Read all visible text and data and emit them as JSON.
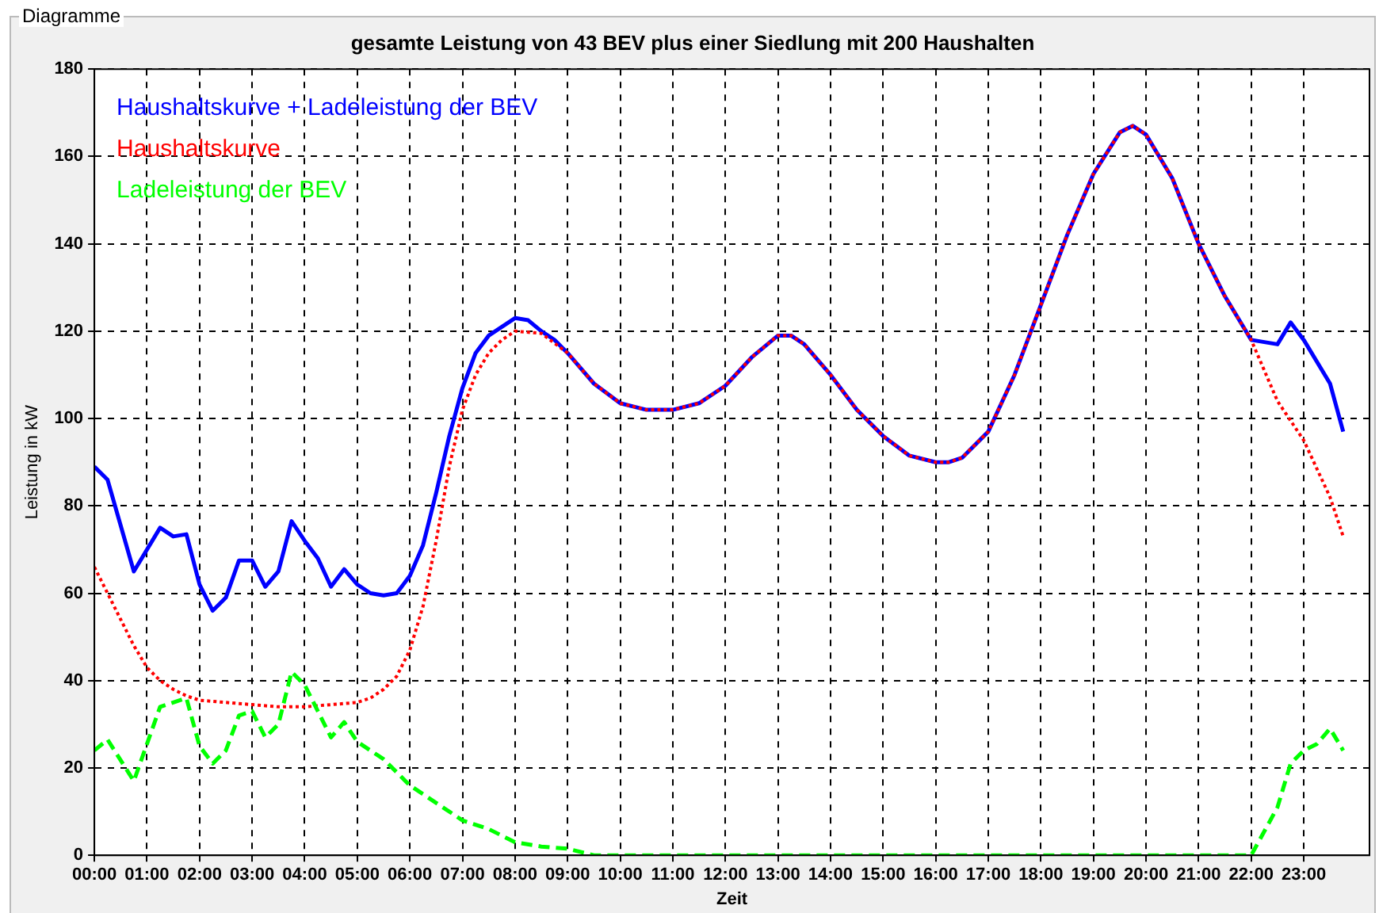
{
  "chart_data": {
    "type": "line",
    "title": "gesamte Leistung von 43 BEV plus einer Siedlung mit 200 Haushalten",
    "xlabel": "Zeit",
    "ylabel": "Leistung in kW",
    "annotations": [
      "Diagramme"
    ],
    "xlim": [
      0,
      24.25
    ],
    "ylim": [
      0,
      180
    ],
    "yticks": [
      0,
      20,
      40,
      60,
      80,
      100,
      120,
      140,
      160,
      180
    ],
    "xticks": [
      {
        "value": 0,
        "label": "00:00"
      },
      {
        "value": 1,
        "label": "01:00"
      },
      {
        "value": 2,
        "label": "02:00"
      },
      {
        "value": 3,
        "label": "03:00"
      },
      {
        "value": 4,
        "label": "04:00"
      },
      {
        "value": 5,
        "label": "05:00"
      },
      {
        "value": 6,
        "label": "06:00"
      },
      {
        "value": 7,
        "label": "07:00"
      },
      {
        "value": 8,
        "label": "08:00"
      },
      {
        "value": 9,
        "label": "09:00"
      },
      {
        "value": 10,
        "label": "10:00"
      },
      {
        "value": 11,
        "label": "11:00"
      },
      {
        "value": 12,
        "label": "12:00"
      },
      {
        "value": 13,
        "label": "13:00"
      },
      {
        "value": 14,
        "label": "14:00"
      },
      {
        "value": 15,
        "label": "15:00"
      },
      {
        "value": 16,
        "label": "16:00"
      },
      {
        "value": 17,
        "label": "17:00"
      },
      {
        "value": 18,
        "label": "18:00"
      },
      {
        "value": 19,
        "label": "19:00"
      },
      {
        "value": 20,
        "label": "20:00"
      },
      {
        "value": 21,
        "label": "21:00"
      },
      {
        "value": 22,
        "label": "22:00"
      },
      {
        "value": 23,
        "label": "23:00"
      }
    ],
    "grid": true,
    "legend": "top left",
    "marker": "none",
    "series": [
      {
        "name": "Haushaltskurve + Ladeleistung der BEV",
        "color": "#0000ff",
        "line_style": "solid",
        "x": [
          0,
          0.25,
          0.75,
          1.25,
          1.5,
          1.75,
          2,
          2.25,
          2.5,
          2.75,
          3,
          3.25,
          3.5,
          3.75,
          4,
          4.25,
          4.5,
          4.75,
          5,
          5.25,
          5.5,
          5.75,
          6,
          6.25,
          6.5,
          6.75,
          7,
          7.25,
          7.5,
          7.75,
          8,
          8.25,
          8.5,
          8.75,
          9,
          9.5,
          10,
          10.5,
          11,
          11.5,
          12,
          12.5,
          13,
          13.25,
          13.5,
          14,
          14.5,
          15,
          15.5,
          16,
          16.25,
          16.5,
          17,
          17.5,
          18,
          18.5,
          19,
          19.5,
          19.75,
          20,
          20.5,
          21,
          21.5,
          22,
          22.5,
          22.75,
          23,
          23.5,
          23.75
        ],
        "values": [
          89,
          86,
          65,
          75,
          73,
          73.5,
          62,
          56,
          59,
          67.5,
          67.5,
          61.5,
          65,
          76.5,
          72,
          68,
          61.5,
          65.5,
          62,
          60,
          59.5,
          60,
          64,
          71,
          83,
          96,
          107,
          115,
          119,
          121,
          123,
          122.5,
          120,
          118,
          115,
          108,
          103.5,
          102,
          102,
          103.5,
          107.5,
          114,
          119,
          119,
          117,
          110,
          102,
          96,
          91.5,
          90,
          90,
          91,
          97,
          110,
          126,
          142,
          156,
          165.5,
          167,
          165,
          155,
          140,
          128,
          118,
          117,
          122,
          118,
          108,
          97
        ]
      },
      {
        "name": "Haushaltskurve",
        "color": "#ff0000",
        "line_style": "dotted",
        "x": [
          0,
          0.25,
          0.5,
          0.75,
          1,
          1.25,
          1.5,
          1.75,
          2,
          2.5,
          3,
          3.5,
          4,
          4.5,
          5,
          5.25,
          5.5,
          5.75,
          6,
          6.25,
          6.5,
          6.75,
          7,
          7.25,
          7.5,
          7.75,
          8,
          8.5,
          9,
          9.5,
          10,
          10.5,
          11,
          11.5,
          12,
          12.5,
          13,
          13.25,
          13.5,
          14,
          14.5,
          15,
          15.5,
          16,
          16.25,
          16.5,
          17,
          17.5,
          18,
          18.5,
          19,
          19.5,
          19.75,
          20,
          20.5,
          21,
          21.5,
          22,
          22.5,
          23,
          23.5,
          23.75
        ],
        "values": [
          66,
          60,
          54,
          48,
          43,
          40,
          38,
          36.5,
          35.5,
          35,
          34.5,
          34,
          34,
          34.5,
          35,
          36,
          38,
          41,
          47,
          57,
          72,
          89,
          102,
          110,
          115,
          118,
          120,
          119.5,
          115,
          108,
          103.5,
          102,
          102,
          103.5,
          107.5,
          114,
          119,
          119,
          117,
          110,
          102,
          96,
          91.5,
          90,
          90,
          91,
          97,
          110,
          126,
          142,
          156,
          165.5,
          167,
          165,
          155,
          140,
          128,
          118,
          104,
          95,
          82,
          73
        ]
      },
      {
        "name": "Ladeleistung der BEV",
        "color": "#00ff00",
        "line_style": "dashed",
        "x": [
          0,
          0.25,
          0.75,
          1.25,
          1.5,
          1.75,
          2,
          2.25,
          2.5,
          2.75,
          3,
          3.25,
          3.5,
          3.75,
          4,
          4.25,
          4.5,
          4.75,
          5,
          5.5,
          6,
          6.5,
          7,
          7.5,
          8,
          8.5,
          9,
          9.5,
          10,
          12,
          14,
          16,
          18,
          20,
          22,
          22.5,
          22.75,
          23,
          23.25,
          23.5,
          23.75
        ],
        "values": [
          24,
          26.5,
          17,
          34,
          35,
          36,
          25,
          21,
          24,
          32,
          33,
          27,
          30,
          42,
          39,
          33,
          27,
          30.5,
          26,
          22,
          16,
          12,
          8,
          6,
          3,
          2,
          1.5,
          0,
          0,
          0,
          0,
          0,
          0,
          0,
          0,
          11,
          21,
          24,
          25.5,
          29,
          24
        ]
      }
    ]
  }
}
